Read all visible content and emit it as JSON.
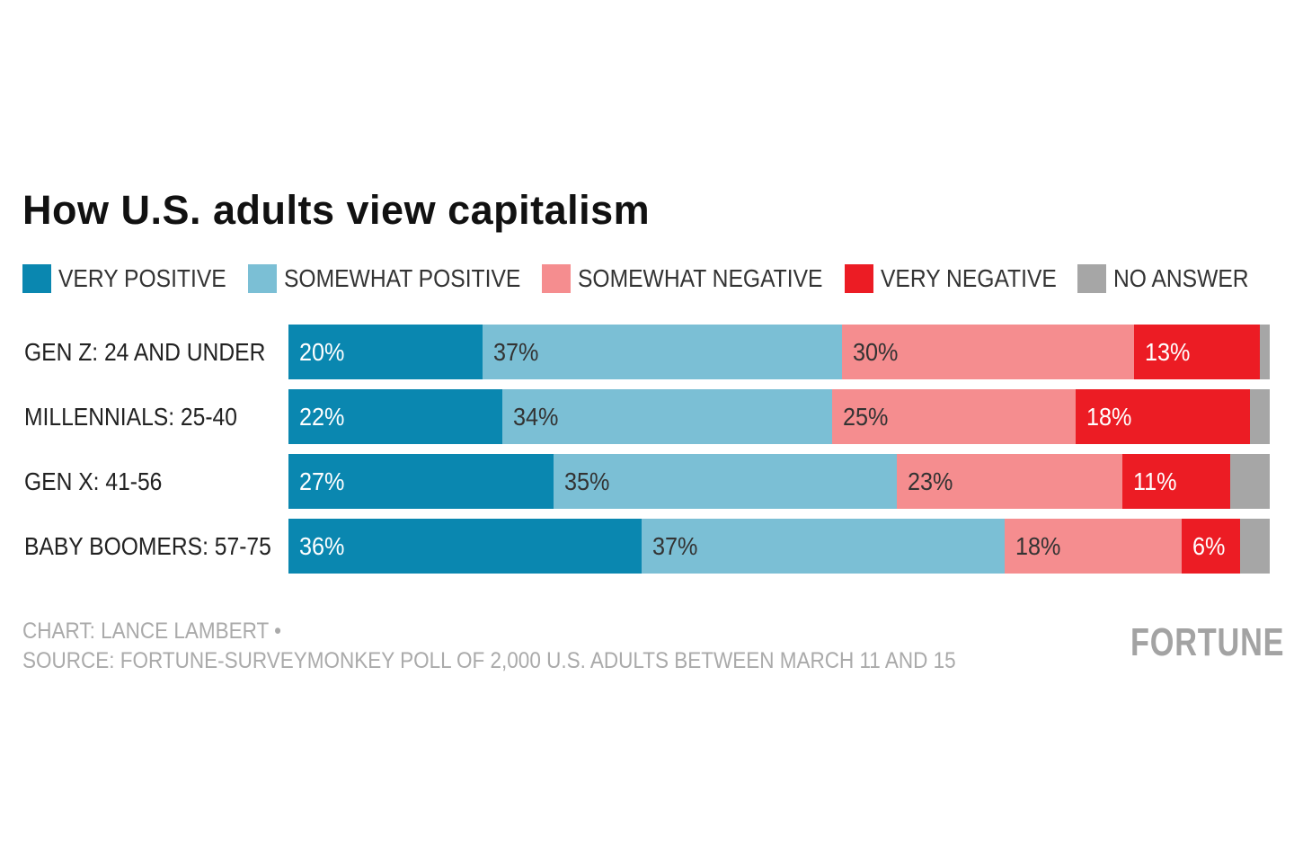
{
  "chart_data": {
    "type": "bar",
    "orientation": "horizontal",
    "stacked": true,
    "title": "How U.S. adults view capitalism",
    "categories": [
      "GEN Z: 24 AND UNDER",
      "MILLENNIALS: 25-40",
      "GEN X: 41-56",
      "BABY BOOMERS: 57-75"
    ],
    "series": [
      {
        "name": "VERY POSITIVE",
        "color": "#0a87b0",
        "text_color": "#ffffff",
        "values": [
          20,
          22,
          27,
          36
        ],
        "labels": [
          "20%",
          "22%",
          "27%",
          "36%"
        ]
      },
      {
        "name": "SOMEWHAT POSITIVE",
        "color": "#7bbfd5",
        "text_color": "#333333",
        "values": [
          37,
          34,
          35,
          37
        ],
        "labels": [
          "37%",
          "34%",
          "35%",
          "37%"
        ]
      },
      {
        "name": "SOMEWHAT NEGATIVE",
        "color": "#f58d8f",
        "text_color": "#333333",
        "values": [
          30,
          25,
          23,
          18
        ],
        "labels": [
          "30%",
          "25%",
          "23%",
          "18%"
        ]
      },
      {
        "name": "VERY NEGATIVE",
        "color": "#ec1c24",
        "text_color": "#ffffff",
        "values": [
          13,
          18,
          11,
          6
        ],
        "labels": [
          "13%",
          "18%",
          "11%",
          "6%"
        ]
      },
      {
        "name": "NO ANSWER",
        "color": "#a6a6a6",
        "text_color": "#333333",
        "values": [
          1,
          2,
          4,
          3
        ],
        "labels": [
          "",
          "",
          "",
          ""
        ]
      }
    ],
    "unit": "%",
    "legend_position": "top-left",
    "grid": false
  },
  "footer": {
    "credit": "CHART: LANCE LAMBERT •",
    "source": "SOURCE: FORTUNE-SURVEYMONKEY POLL OF 2,000 U.S. ADULTS BETWEEN MARCH 11 AND 15",
    "logo": "FORTUNE"
  }
}
